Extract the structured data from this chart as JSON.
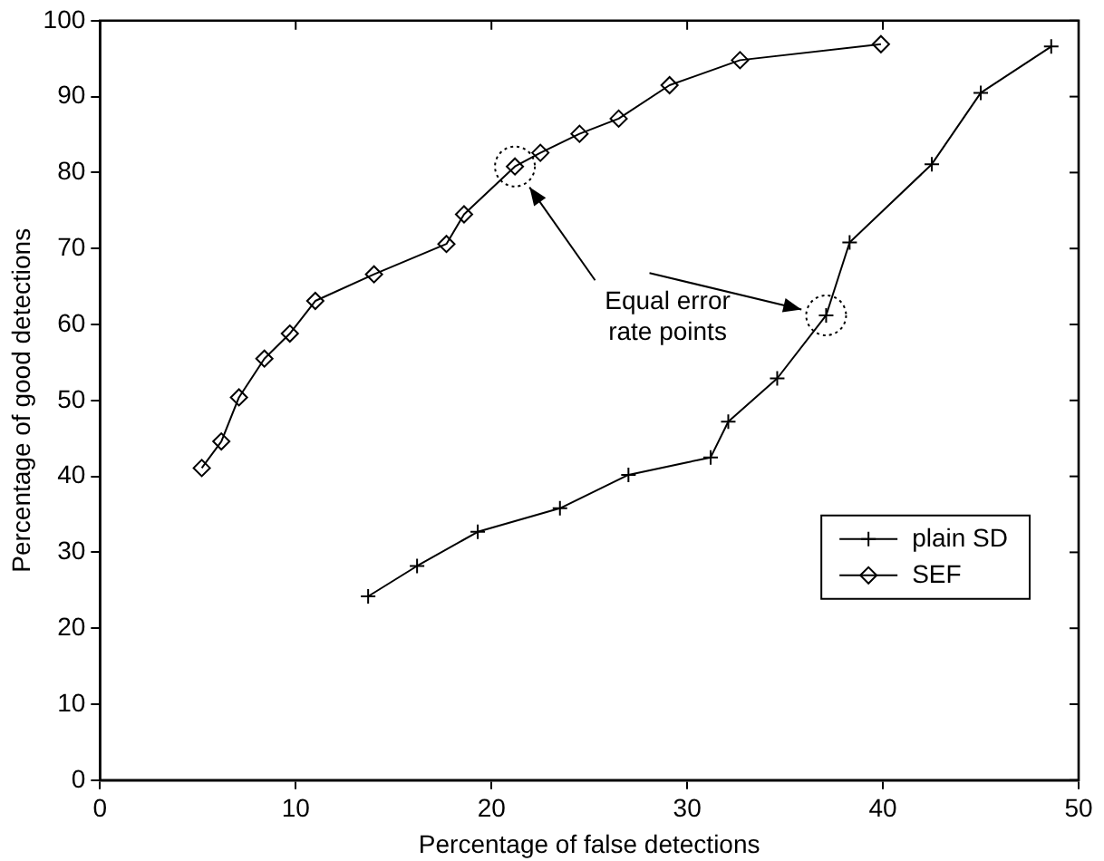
{
  "chart_data": {
    "type": "line",
    "xlabel": "Percentage of false detections",
    "ylabel": "Percentage of good detections",
    "xlim": [
      0,
      50
    ],
    "xticks": [
      0,
      10,
      20,
      30,
      40,
      50
    ],
    "ylim": [
      0,
      100
    ],
    "yticks": [
      0,
      10,
      20,
      30,
      40,
      50,
      60,
      70,
      80,
      90,
      100
    ],
    "grid": false,
    "legend": "bottom right",
    "line_style": "solid",
    "annotations": [
      "Equal error rate points"
    ],
    "series": [
      {
        "name": "plain SD",
        "color": "#000000",
        "marker": "cross",
        "x": [
          13.7,
          16.2,
          19.3,
          23.5,
          27.0,
          31.2,
          32.1,
          34.6,
          37.1,
          38.3,
          42.5,
          45.0,
          48.6
        ],
        "values": [
          24.2,
          28.2,
          32.7,
          35.8,
          40.2,
          42.5,
          47.2,
          52.9,
          61.2,
          70.8,
          81.1,
          90.5,
          96.6
        ]
      },
      {
        "name": "SEF",
        "color": "#000000",
        "marker": "diamond",
        "x": [
          5.2,
          6.2,
          7.1,
          8.4,
          9.7,
          11.0,
          14.0,
          17.7,
          18.6,
          21.2,
          22.5,
          24.5,
          26.5,
          29.1,
          32.7,
          39.9
        ],
        "values": [
          41.1,
          44.6,
          50.4,
          55.5,
          58.8,
          63.1,
          66.6,
          70.6,
          74.5,
          80.8,
          82.6,
          85.1,
          87.1,
          91.5,
          94.8,
          96.9
        ]
      }
    ]
  }
}
